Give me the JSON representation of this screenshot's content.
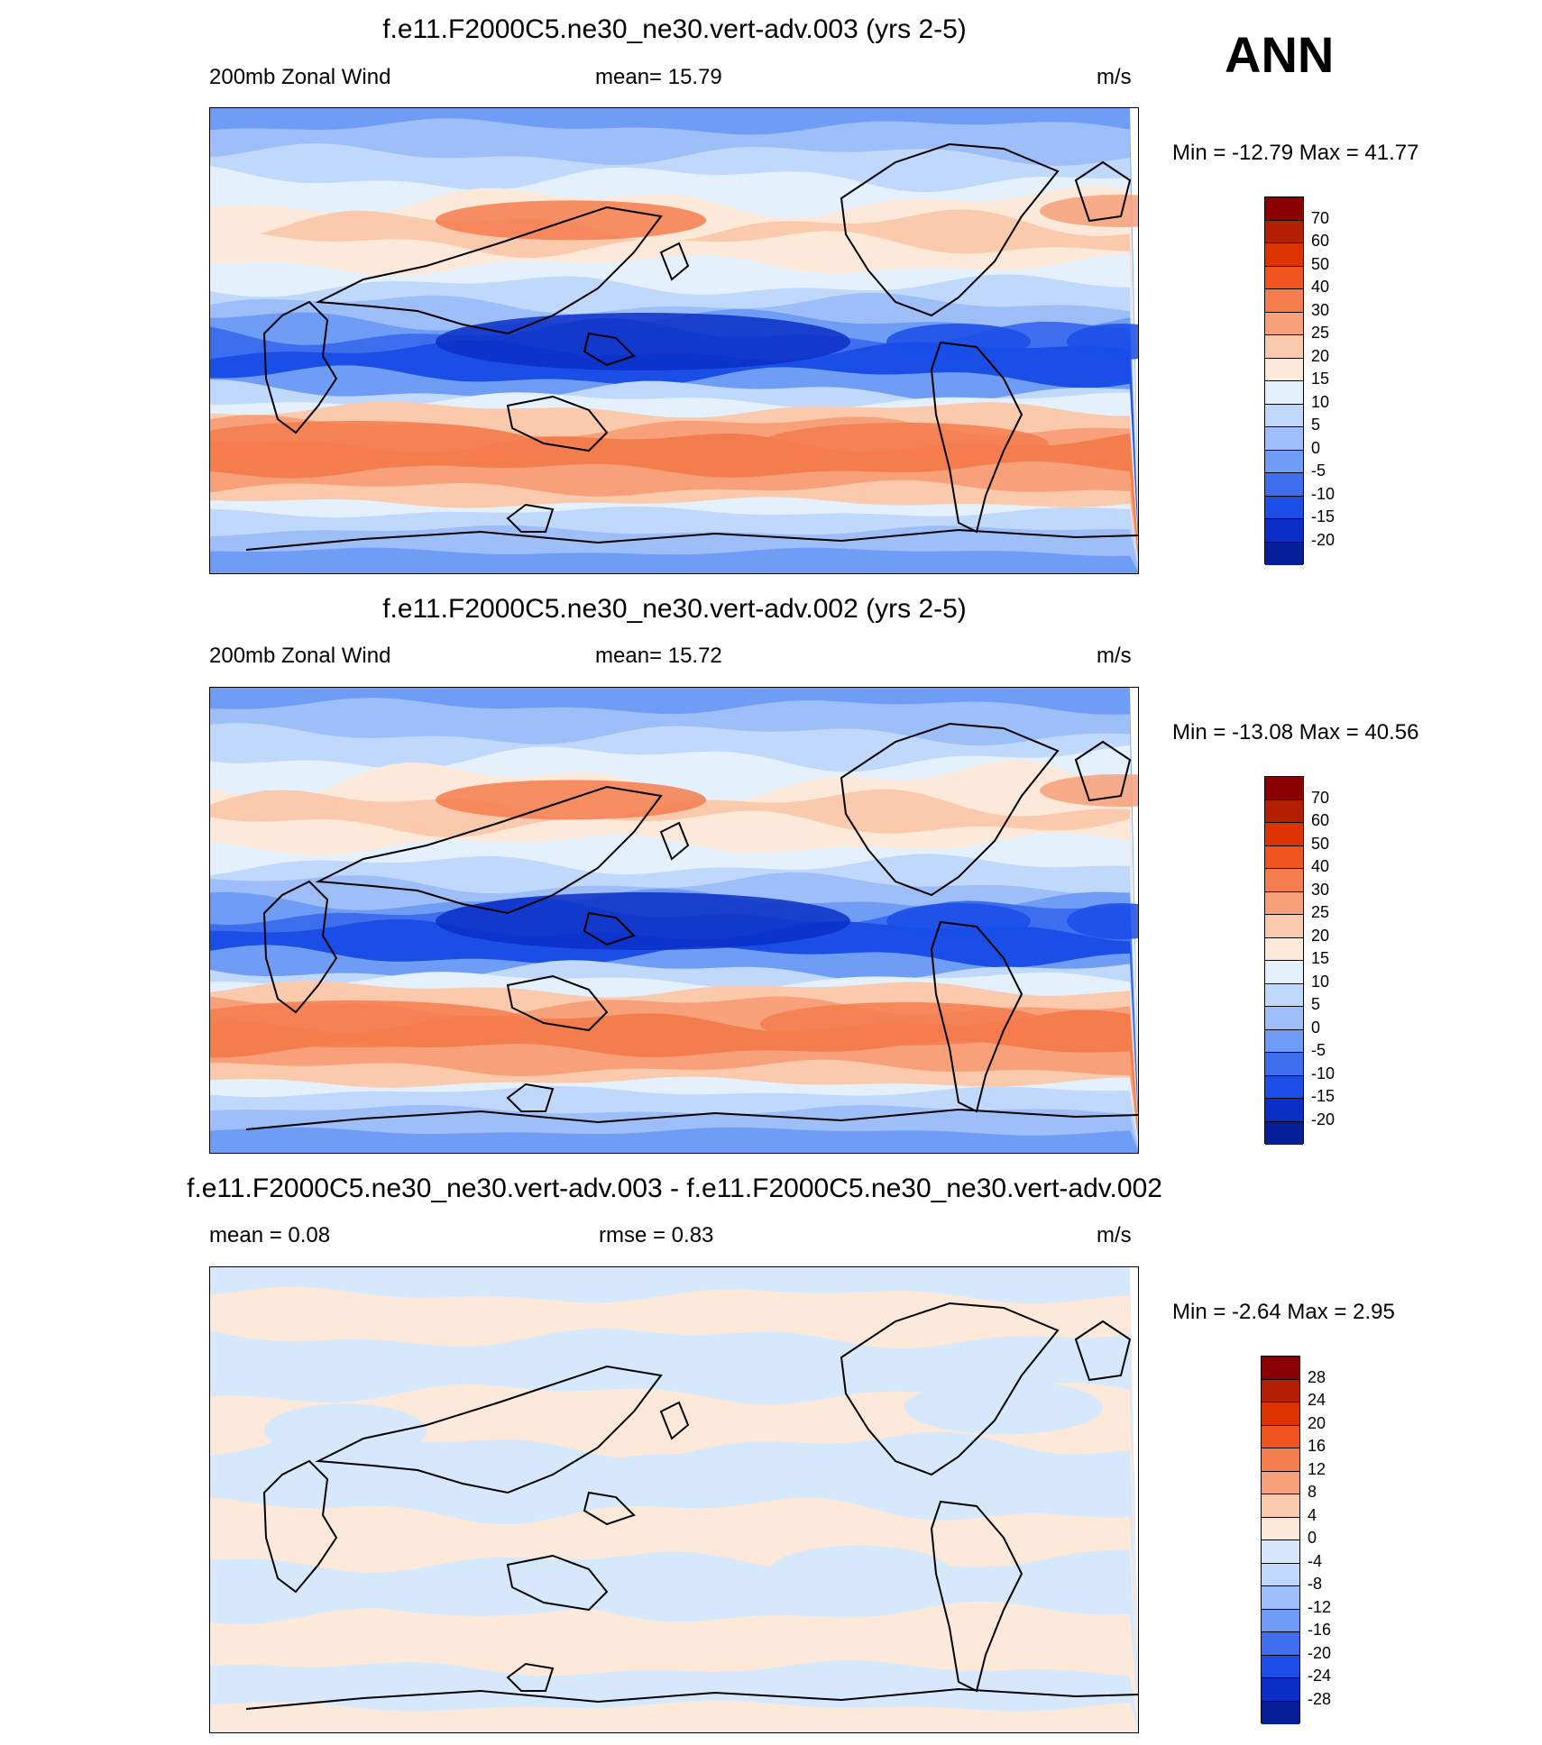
{
  "season": "ANN",
  "chart_data": [
    {
      "type": "heatmap",
      "title": "f.e11.F2000C5.ne30_ne30.vert-adv.003 (yrs 2-5)",
      "left_label": "200mb Zonal Wind",
      "center_label": "mean=  15.79",
      "units": "m/s",
      "min_max": "Min = -12.79 Max =  41.77",
      "min": -12.79,
      "max": 41.77,
      "mean": 15.79,
      "colorbar_ticks": [
        "70",
        "60",
        "50",
        "40",
        "30",
        "25",
        "20",
        "15",
        "10",
        "5",
        "0",
        "-5",
        "-10",
        "-15",
        "-20"
      ],
      "colorbar_colors": [
        "#8b0000",
        "#b22000",
        "#dd3300",
        "#f05520",
        "#f47d4d",
        "#f7a07a",
        "#fbc9ac",
        "#fde9da",
        "#e4f0fc",
        "#c0d8fb",
        "#9ebefa",
        "#6f9df6",
        "#3e6eee",
        "#1a4ee6",
        "#0b2fc6",
        "#061e96"
      ],
      "profile": "cntl3"
    },
    {
      "type": "heatmap",
      "title": "f.e11.F2000C5.ne30_ne30.vert-adv.002 (yrs 2-5)",
      "left_label": "200mb Zonal Wind",
      "center_label": "mean=  15.72",
      "units": "m/s",
      "min_max": "Min = -13.08 Max =  40.56",
      "min": -13.08,
      "max": 40.56,
      "mean": 15.72,
      "colorbar_ticks": [
        "70",
        "60",
        "50",
        "40",
        "30",
        "25",
        "20",
        "15",
        "10",
        "5",
        "0",
        "-5",
        "-10",
        "-15",
        "-20"
      ],
      "colorbar_colors": [
        "#8b0000",
        "#b22000",
        "#dd3300",
        "#f05520",
        "#f47d4d",
        "#f7a07a",
        "#fbc9ac",
        "#fde9da",
        "#e4f0fc",
        "#c0d8fb",
        "#9ebefa",
        "#6f9df6",
        "#3e6eee",
        "#1a4ee6",
        "#0b2fc6",
        "#061e96"
      ],
      "profile": "cntl2"
    },
    {
      "type": "heatmap",
      "title": "f.e11.F2000C5.ne30_ne30.vert-adv.003 - f.e11.F2000C5.ne30_ne30.vert-adv.002",
      "left_label": "mean =   0.08",
      "center_label": "rmse =   0.83",
      "units": "m/s",
      "min_max": "Min =  -2.64 Max =   2.95",
      "min": -2.64,
      "max": 2.95,
      "mean": 0.08,
      "rmse": 0.83,
      "colorbar_ticks": [
        "28",
        "24",
        "20",
        "16",
        "12",
        "8",
        "4",
        "0",
        "-4",
        "-8",
        "-12",
        "-16",
        "-20",
        "-24",
        "-28"
      ],
      "colorbar_colors": [
        "#8b0000",
        "#b22000",
        "#dd3300",
        "#f05520",
        "#f47d4d",
        "#f7a07a",
        "#fbc9ac",
        "#fde9da",
        "#d6e8fb",
        "#c0d8fb",
        "#9ebefa",
        "#6f9df6",
        "#3e6eee",
        "#1a4ee6",
        "#0b2fc6",
        "#061e96"
      ],
      "profile": "diff"
    }
  ]
}
